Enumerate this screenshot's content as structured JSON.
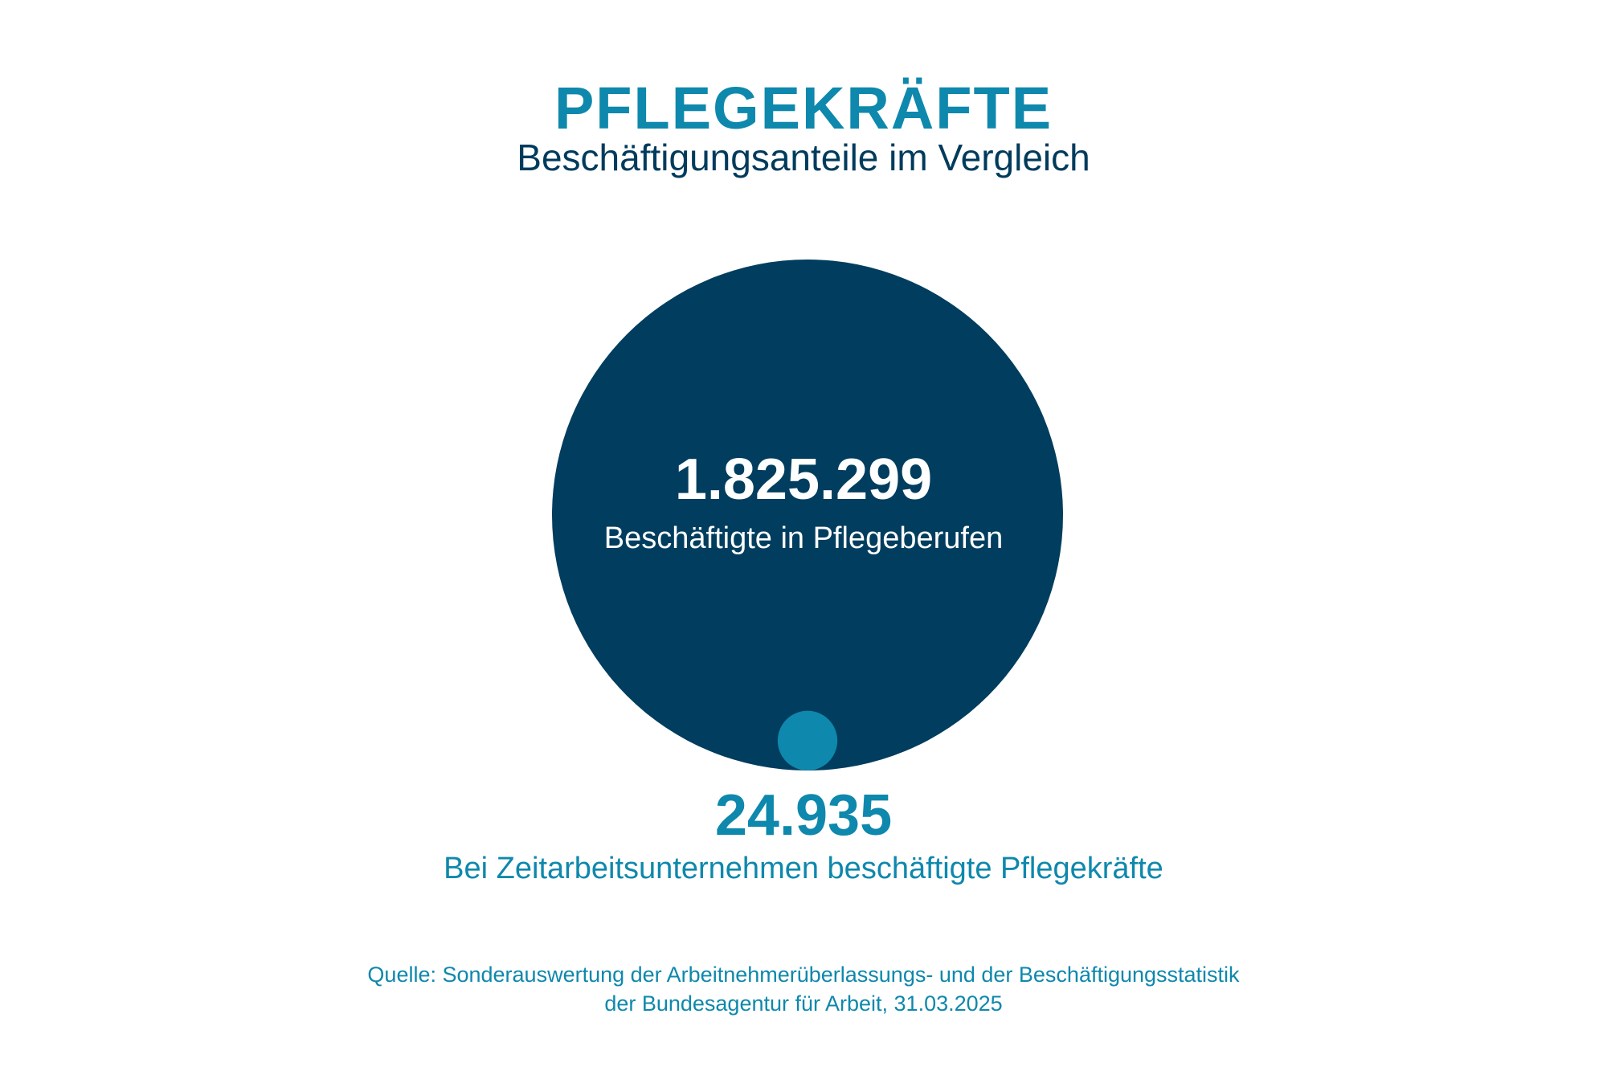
{
  "chart_data": {
    "type": "bubble",
    "title": "PFLEGEKRÄFTE",
    "subtitle": "Beschäftigungsanteile im Vergleich",
    "series": [
      {
        "name": "Beschäftigte in Pflegeberufen",
        "value": 1825299,
        "value_label": "1.825.299",
        "color": "#003d5e"
      },
      {
        "name": "Bei Zeitarbeitsunternehmen beschäftigte Pflegekräfte",
        "value": 24935,
        "value_label": "24.935",
        "color": "#0e88ac"
      }
    ],
    "source": {
      "line1": "Quelle: Sonderauswertung der Arbeitnehmerüberlassungs- und der Beschäftigungsstatistik",
      "line2": "der Bundesagentur für Arbeit, 31.03.2025"
    }
  }
}
